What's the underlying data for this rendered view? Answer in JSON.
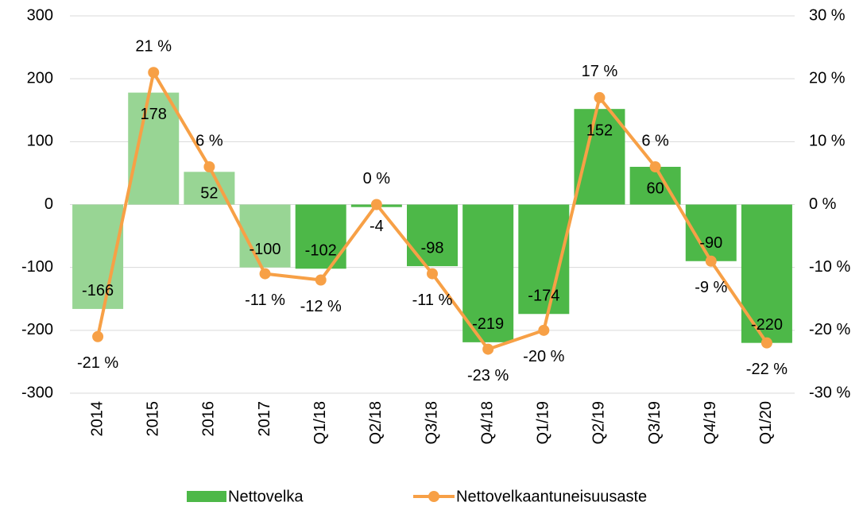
{
  "chart_data": {
    "type": "bar-line",
    "categories": [
      "2014",
      "2015",
      "2016",
      "2017",
      "Q1/18",
      "Q2/18",
      "Q3/18",
      "Q4/18",
      "Q1/19",
      "Q2/19",
      "Q3/19",
      "Q4/19",
      "Q1/20"
    ],
    "series": [
      {
        "name": "Nettovelka",
        "type": "bar",
        "color": "#4db848",
        "colors": [
          "#98d594",
          "#98d594",
          "#98d594",
          "#98d594",
          "#4db848",
          "#4db848",
          "#4db848",
          "#4db848",
          "#4db848",
          "#4db848",
          "#4db848",
          "#4db848",
          "#4db848"
        ],
        "values": [
          -166,
          178,
          52,
          -100,
          -102,
          -4,
          -98,
          -219,
          -174,
          152,
          60,
          -90,
          -220
        ]
      },
      {
        "name": "Nettovelkaantuneisuusaste",
        "type": "line",
        "axis": "y2",
        "color": "#f7a046",
        "values": [
          -21,
          21,
          6,
          -11,
          -12,
          0,
          -11,
          -23,
          -20,
          17,
          6,
          -9,
          -22
        ],
        "value_labels": [
          "-21 %",
          "21 %",
          "6 %",
          "-11 %",
          "-12 %",
          "0 %",
          "-11 %",
          "-23 %",
          "-20 %",
          "17 %",
          "6 %",
          "-9 %",
          "-22 %"
        ]
      }
    ],
    "ylim": [
      -300,
      300
    ],
    "yticks": [
      -300,
      -200,
      -100,
      0,
      100,
      200,
      300
    ],
    "y2lim": [
      -30,
      30
    ],
    "y2ticks": [
      {
        "value": -30,
        "label": "-30 %"
      },
      {
        "value": -20,
        "label": "-20 %"
      },
      {
        "value": -10,
        "label": "-10 %"
      },
      {
        "value": 0,
        "label": "0 %"
      },
      {
        "value": 10,
        "label": "10 %"
      },
      {
        "value": 20,
        "label": "20 %"
      },
      {
        "value": 30,
        "label": "30 %"
      }
    ],
    "grid": true,
    "legend": "bottom"
  }
}
